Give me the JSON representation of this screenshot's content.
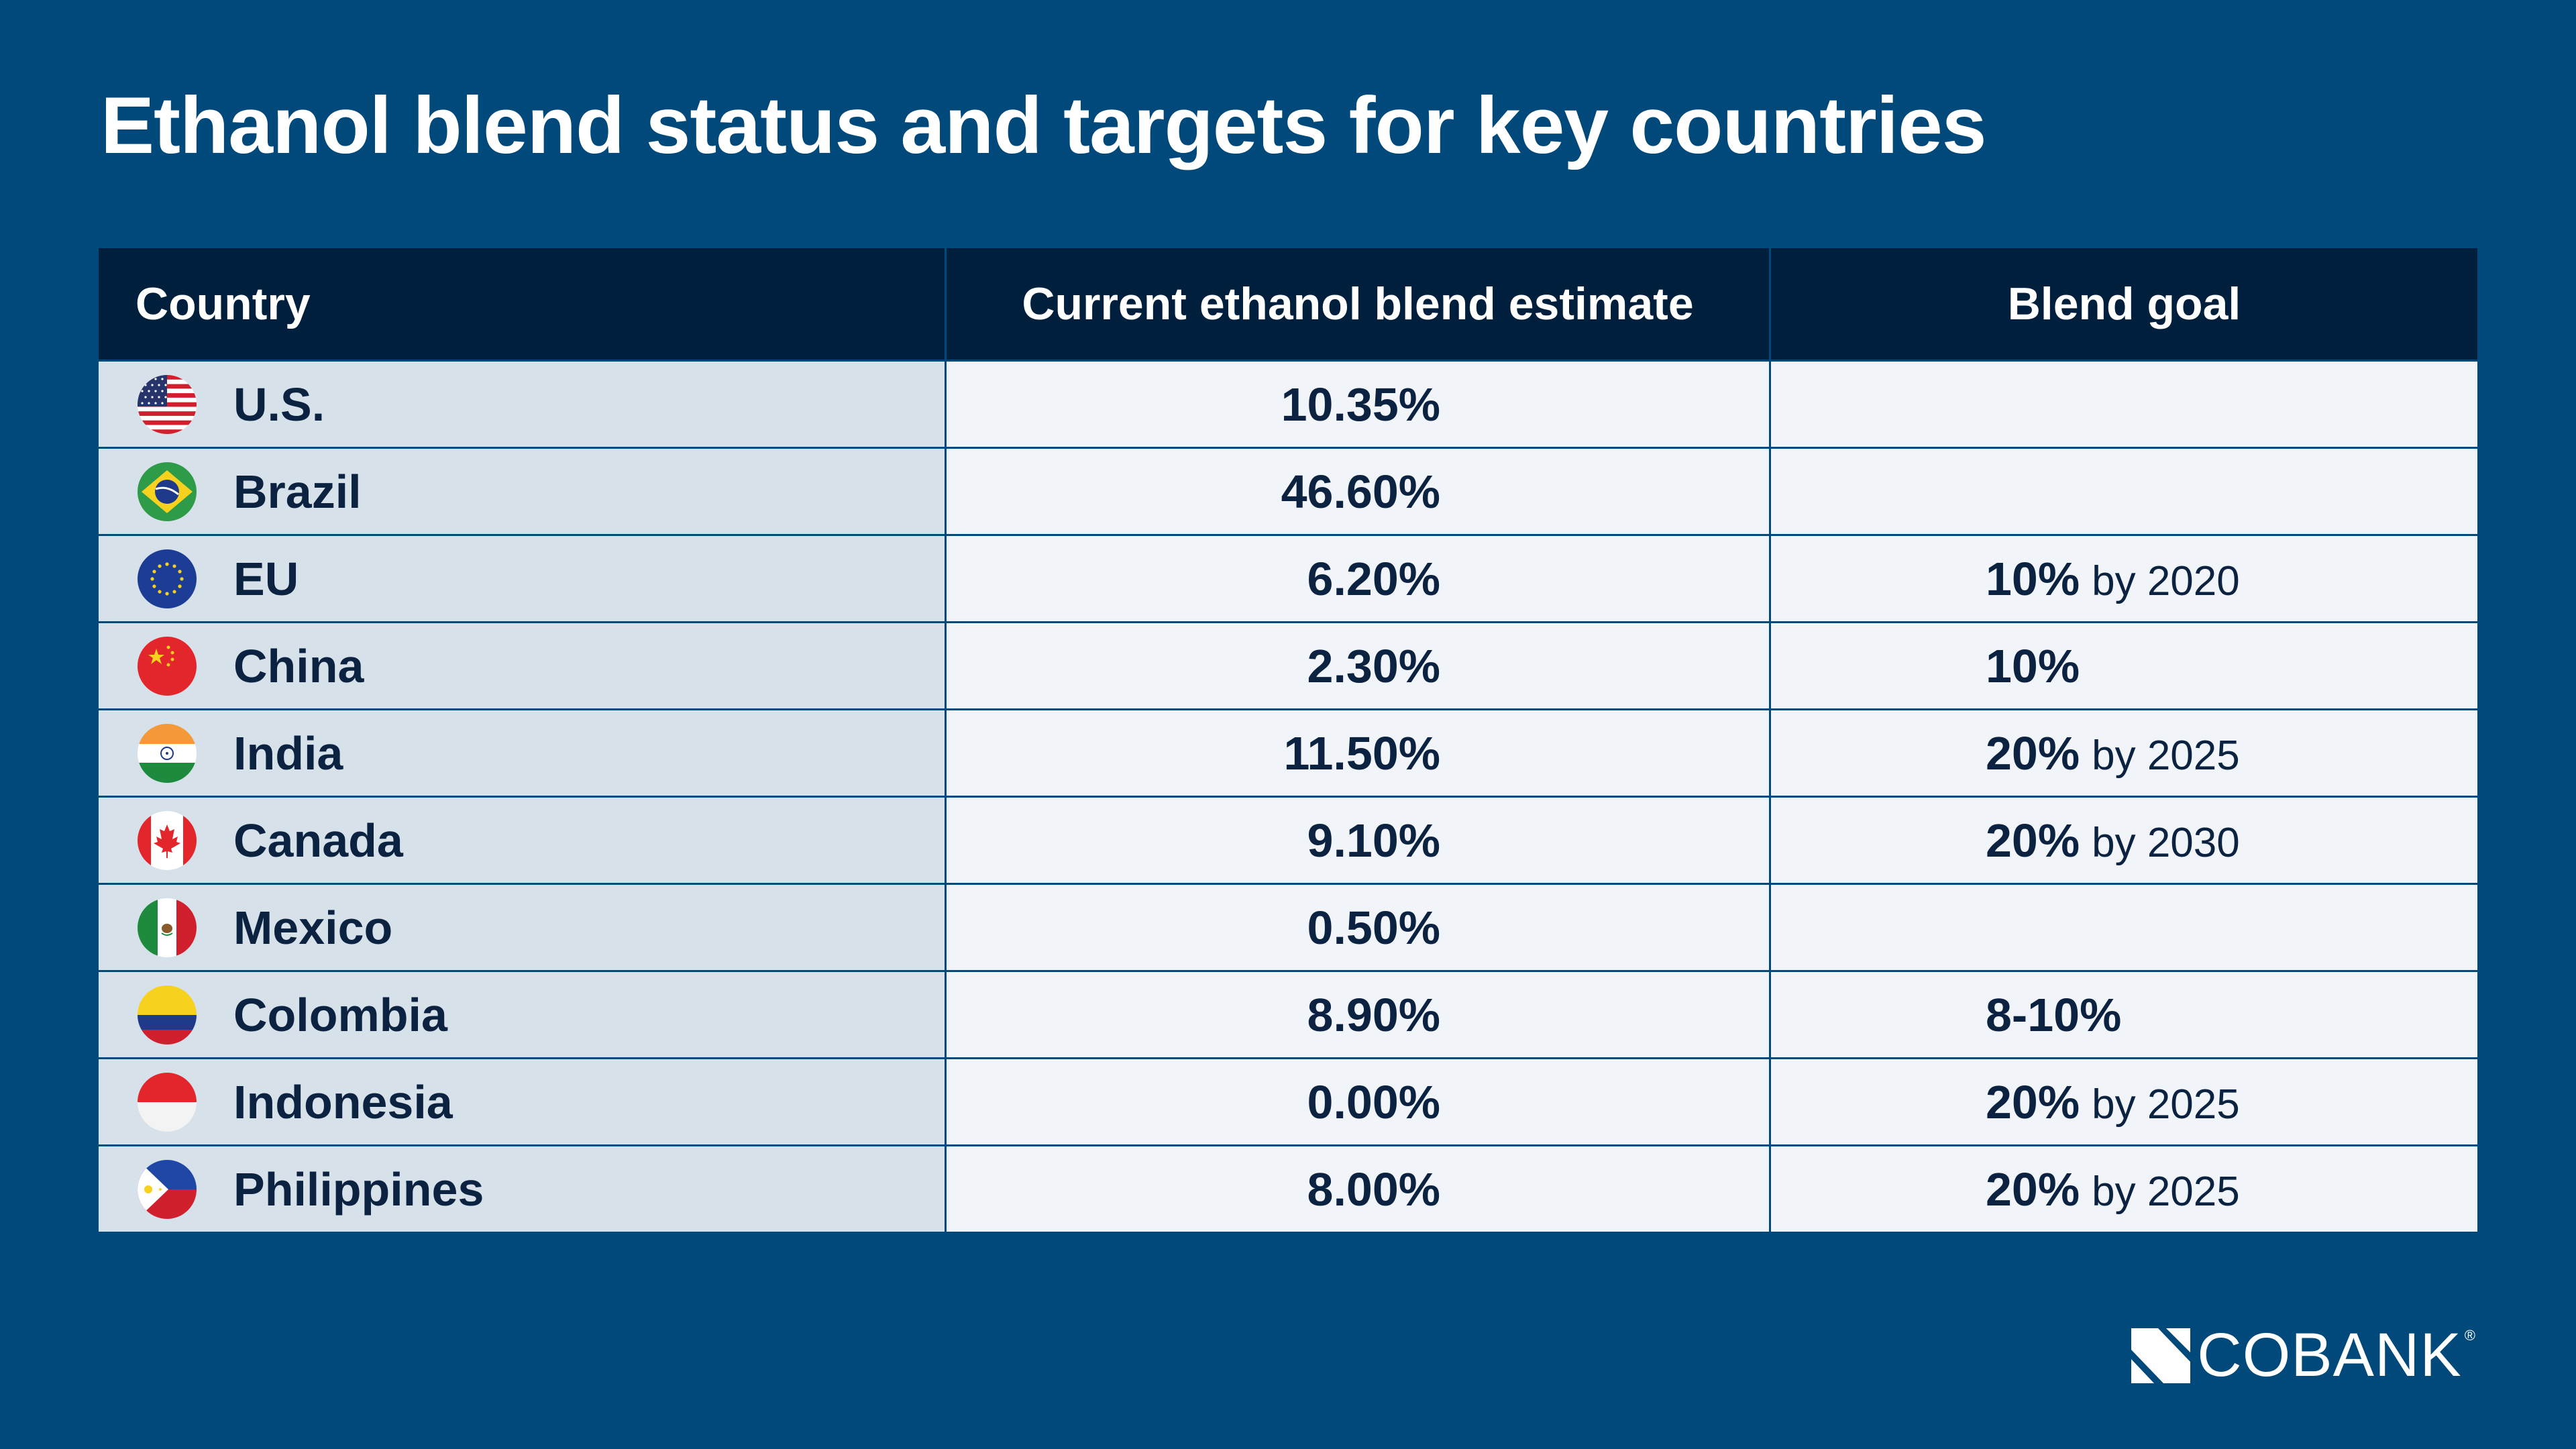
{
  "chart_data": {
    "type": "table",
    "title": "Ethanol blend status and targets for key countries",
    "columns": [
      "Country",
      "Current ethanol blend estimate",
      "Blend goal"
    ],
    "rows": [
      {
        "country": "U.S.",
        "flag": "us-flag-icon",
        "current": "10.35%",
        "current_value": 10.35,
        "goal": "",
        "goal_suffix": ""
      },
      {
        "country": "Brazil",
        "flag": "brazil-flag-icon",
        "current": "46.60%",
        "current_value": 46.6,
        "goal": "",
        "goal_suffix": ""
      },
      {
        "country": "EU",
        "flag": "eu-flag-icon",
        "current": "6.20%",
        "current_value": 6.2,
        "goal": "10%",
        "goal_suffix": "by 2020"
      },
      {
        "country": "China",
        "flag": "china-flag-icon",
        "current": "2.30%",
        "current_value": 2.3,
        "goal": "10%",
        "goal_suffix": ""
      },
      {
        "country": "India",
        "flag": "india-flag-icon",
        "current": "11.50%",
        "current_value": 11.5,
        "goal": "20%",
        "goal_suffix": "by 2025"
      },
      {
        "country": "Canada",
        "flag": "canada-flag-icon",
        "current": "9.10%",
        "current_value": 9.1,
        "goal": "20%",
        "goal_suffix": "by 2030"
      },
      {
        "country": "Mexico",
        "flag": "mexico-flag-icon",
        "current": "0.50%",
        "current_value": 0.5,
        "goal": "",
        "goal_suffix": ""
      },
      {
        "country": "Colombia",
        "flag": "colombia-flag-icon",
        "current": "8.90%",
        "current_value": 8.9,
        "goal": "8-10%",
        "goal_suffix": ""
      },
      {
        "country": "Indonesia",
        "flag": "indonesia-flag-icon",
        "current": "0.00%",
        "current_value": 0.0,
        "goal": "20%",
        "goal_suffix": "by 2025"
      },
      {
        "country": "Philippines",
        "flag": "philippines-flag-icon",
        "current": "8.00%",
        "current_value": 8.0,
        "goal": "20%",
        "goal_suffix": "by 2025"
      }
    ]
  },
  "colors": {
    "background": "#00497a",
    "header": "#001f3c",
    "country_cell": "#d6e1ea",
    "value_cell": "#f1f4f8",
    "text": "#0b2240"
  },
  "logo": {
    "text": "COBANK",
    "registered": "®",
    "icon": "cobank-logo-icon"
  }
}
